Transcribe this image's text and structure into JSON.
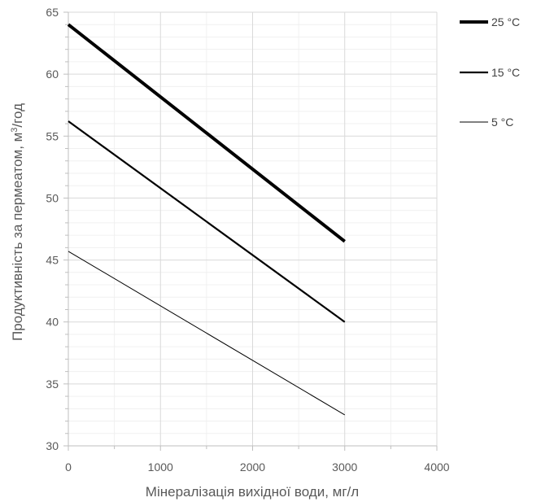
{
  "chart_data": {
    "type": "line",
    "xlabel": "Мінералізація вихідної води, мг/л",
    "ylabel_main": "Продуктивність за пермеатом, м",
    "ylabel_sup": "3",
    "ylabel_tail": "/год",
    "xlim": [
      0,
      4000
    ],
    "ylim": [
      30,
      65
    ],
    "x_ticks": [
      "0",
      "1000",
      "2000",
      "3000",
      "4000"
    ],
    "y_ticks": [
      "30",
      "35",
      "40",
      "45",
      "50",
      "55",
      "60",
      "65"
    ],
    "x_tick_values": [
      0,
      1000,
      2000,
      3000,
      4000
    ],
    "y_tick_values": [
      30,
      35,
      40,
      45,
      50,
      55,
      60,
      65
    ],
    "x_minor_step": 500,
    "y_minor_step": 1,
    "grid": true,
    "legend_position": "right",
    "series": [
      {
        "name": "25 °C",
        "x": [
          0,
          3000
        ],
        "y": [
          64.0,
          46.5
        ],
        "color": "#000000"
      },
      {
        "name": "15 °C",
        "x": [
          0,
          3000
        ],
        "y": [
          56.2,
          40.0
        ],
        "color": "#000000"
      },
      {
        "name": "5 °C",
        "x": [
          0,
          3000
        ],
        "y": [
          45.7,
          32.5
        ],
        "color": "#000000"
      }
    ]
  }
}
